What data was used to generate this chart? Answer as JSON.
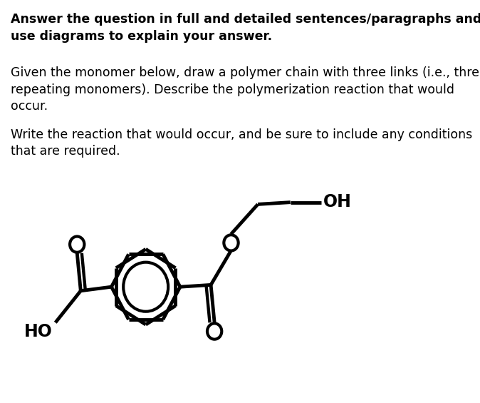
{
  "title_bold": "Answer the question in full and detailed sentences/paragraphs and\nuse diagrams to explain your answer.",
  "body_text1": "Given the monomer below, draw a polymer chain with three links (i.e., three\nrepeating monomers). Describe the polymerization reaction that would\noccur.",
  "body_text2": "Write the reaction that would occur, and be sure to include any conditions\nthat are required.",
  "background_color": "#ffffff",
  "text_color": "#000000",
  "line_color": "#000000",
  "line_width": 3.5,
  "font_size_body": 12.5,
  "font_size_bold": 12.5,
  "bx": 0.395,
  "by": 0.285,
  "r_out": 0.095,
  "r_in": 0.062
}
